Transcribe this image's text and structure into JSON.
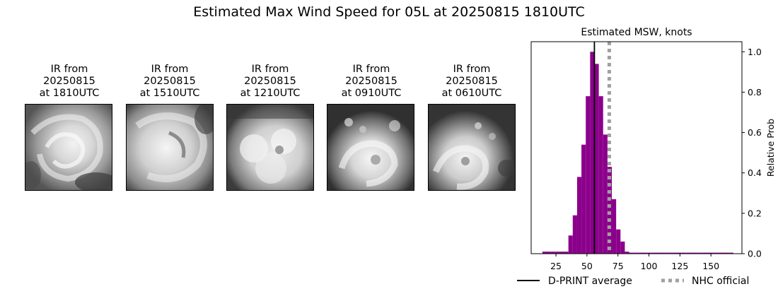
{
  "suptitle": "Estimated Max Wind Speed for 05L at 20250815 1810UTC",
  "panels": [
    {
      "line1": "IR from",
      "line2": "20250815",
      "line3": "at 1810UTC"
    },
    {
      "line1": "IR from",
      "line2": "20250815",
      "line3": "at 1510UTC"
    },
    {
      "line1": "IR from",
      "line2": "20250815",
      "line3": "at 1210UTC"
    },
    {
      "line1": "IR from",
      "line2": "20250815",
      "line3": "at 0910UTC"
    },
    {
      "line1": "IR from",
      "line2": "20250815",
      "line3": "at 0610UTC"
    }
  ],
  "chart_data": {
    "type": "bar",
    "title": "Estimated MSW, knots",
    "xlabel": "",
    "ylabel": "Relative Prob",
    "xlim": [
      5,
      175
    ],
    "ylim": [
      0,
      1.05
    ],
    "xticks": [
      25,
      50,
      75,
      100,
      125,
      150
    ],
    "yticks": [
      0.0,
      0.2,
      0.4,
      0.6,
      0.8,
      1.0
    ],
    "ytick_labels": [
      "0.0",
      "0.2",
      "0.4",
      "0.6",
      "0.8",
      "1.0"
    ],
    "y_axis_side": "right",
    "grid": false,
    "bar_color": "#8b008b",
    "bin_width": 3.5,
    "bins": [
      {
        "x": 15.8,
        "y": 0.01
      },
      {
        "x": 19.3,
        "y": 0.01
      },
      {
        "x": 22.8,
        "y": 0.01
      },
      {
        "x": 26.3,
        "y": 0.01
      },
      {
        "x": 29.8,
        "y": 0.01
      },
      {
        "x": 33.3,
        "y": 0.01
      },
      {
        "x": 36.8,
        "y": 0.09
      },
      {
        "x": 40.3,
        "y": 0.19
      },
      {
        "x": 43.8,
        "y": 0.38
      },
      {
        "x": 47.3,
        "y": 0.54
      },
      {
        "x": 50.8,
        "y": 0.78
      },
      {
        "x": 54.3,
        "y": 1.0
      },
      {
        "x": 57.8,
        "y": 0.94
      },
      {
        "x": 61.3,
        "y": 0.78
      },
      {
        "x": 64.8,
        "y": 0.59
      },
      {
        "x": 68.3,
        "y": 0.43
      },
      {
        "x": 71.8,
        "y": 0.27
      },
      {
        "x": 75.3,
        "y": 0.12
      },
      {
        "x": 78.8,
        "y": 0.06
      },
      {
        "x": 82.3,
        "y": 0.01
      },
      {
        "x": 85.8,
        "y": 0.005
      },
      {
        "x": 89.3,
        "y": 0.005
      },
      {
        "x": 92.8,
        "y": 0.005
      },
      {
        "x": 96.3,
        "y": 0.005
      },
      {
        "x": 99.8,
        "y": 0.005
      },
      {
        "x": 103.3,
        "y": 0.005
      },
      {
        "x": 106.8,
        "y": 0.005
      },
      {
        "x": 110.3,
        "y": 0.005
      },
      {
        "x": 113.8,
        "y": 0.005
      },
      {
        "x": 117.3,
        "y": 0.005
      },
      {
        "x": 120.8,
        "y": 0.005
      },
      {
        "x": 124.3,
        "y": 0.005
      },
      {
        "x": 127.8,
        "y": 0.005
      },
      {
        "x": 131.3,
        "y": 0.005
      },
      {
        "x": 134.8,
        "y": 0.005
      },
      {
        "x": 138.3,
        "y": 0.005
      },
      {
        "x": 141.8,
        "y": 0.005
      },
      {
        "x": 145.3,
        "y": 0.005
      },
      {
        "x": 148.8,
        "y": 0.005
      },
      {
        "x": 152.3,
        "y": 0.005
      },
      {
        "x": 155.8,
        "y": 0.005
      },
      {
        "x": 159.3,
        "y": 0.005
      },
      {
        "x": 162.8,
        "y": 0.005
      },
      {
        "x": 166.3,
        "y": 0.005
      }
    ],
    "dprint_average": 56,
    "nhc_official": 68,
    "legend": [
      {
        "label": "D-PRINT average",
        "style": "solid",
        "color": "#000000"
      },
      {
        "label": "NHC official",
        "style": "dotted",
        "color": "#a0a0a0"
      }
    ],
    "legend_placement": "bottom"
  }
}
